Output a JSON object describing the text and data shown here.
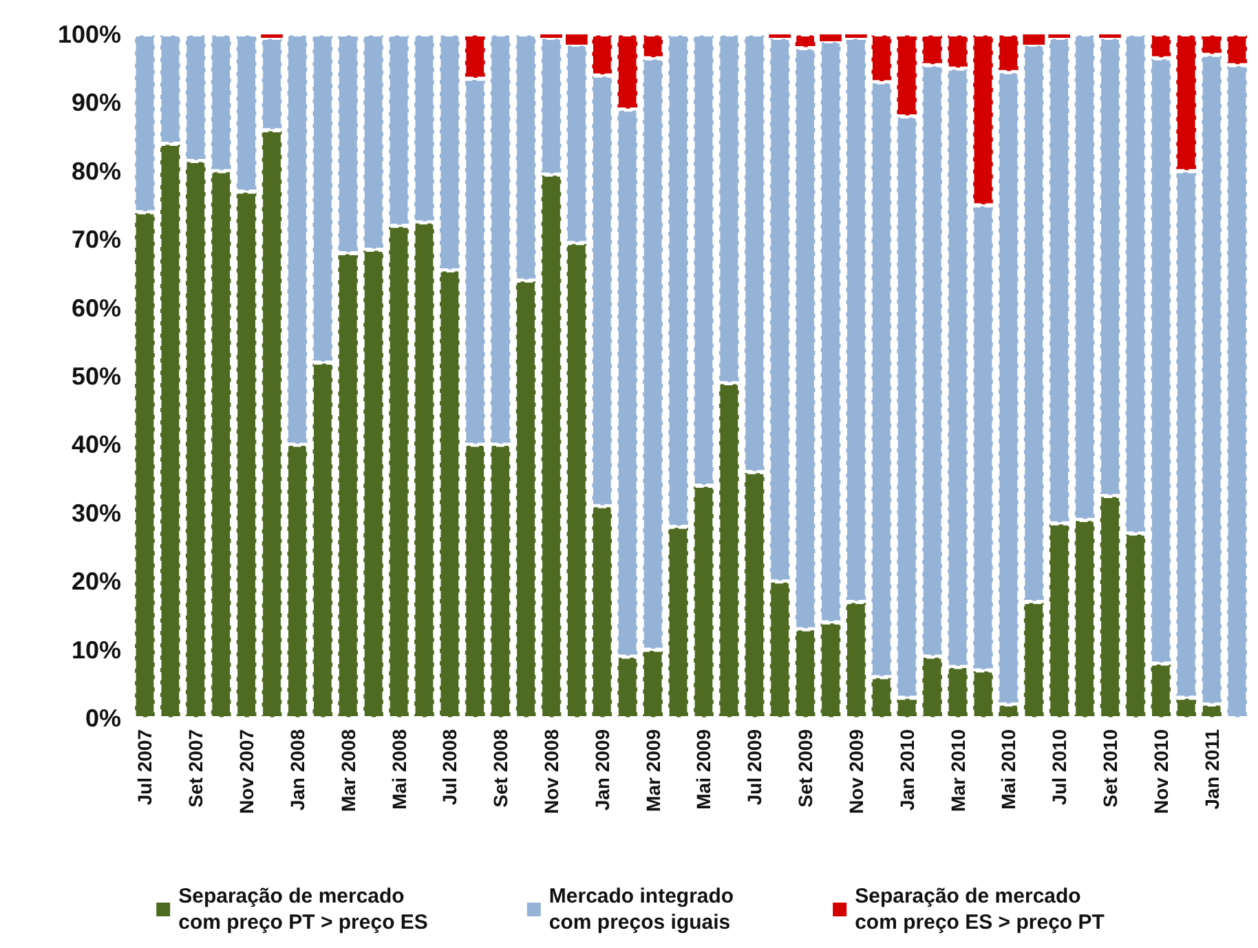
{
  "chart_data": {
    "type": "bar",
    "stacked": true,
    "categories": [
      "Jul 2007",
      null,
      "Set 2007",
      null,
      "Nov 2007",
      null,
      "Jan 2008",
      null,
      "Mar 2008",
      null,
      "Mai 2008",
      null,
      "Jul 2008",
      null,
      "Set 2008",
      null,
      "Nov 2008",
      null,
      "Jan 2009",
      null,
      "Mar 2009",
      null,
      "Mai 2009",
      null,
      "Jul 2009",
      null,
      "Set 2009",
      null,
      "Nov 2009",
      null,
      "Jan 2010",
      null,
      "Mar 2010",
      null,
      "Mai 2010",
      null,
      "Jul 2010",
      null,
      "Set 2010",
      null,
      "Nov 2010",
      null,
      "Jan 2011",
      null
    ],
    "series": [
      {
        "name": "Separação de mercado\ncom preço PT > preço ES",
        "color": "#4f6b22",
        "values": [
          74,
          84,
          81.5,
          80,
          77,
          86,
          40,
          52,
          68,
          68.5,
          72,
          72.5,
          65.5,
          40,
          40,
          64,
          79.5,
          69.5,
          31,
          9,
          10,
          28,
          34,
          49,
          36,
          20,
          13,
          14,
          17,
          6,
          3,
          9,
          7.5,
          7,
          2,
          17,
          28.5,
          29,
          32.5,
          27,
          8,
          3,
          2,
          0
        ]
      },
      {
        "name": "Mercado integrado\ncom preços iguais",
        "color": "#95b3d7",
        "values": [
          26,
          16,
          18.5,
          20,
          23,
          13.5,
          60,
          48,
          32,
          31.5,
          28,
          27.5,
          34.5,
          53.5,
          60,
          36,
          20,
          29,
          63,
          80,
          86.5,
          72,
          66,
          51,
          64,
          79.5,
          85,
          85,
          82.5,
          87,
          85,
          86.5,
          87.5,
          68,
          92.5,
          81.5,
          71,
          71,
          67,
          73,
          88.5,
          77,
          95,
          95.5
        ]
      },
      {
        "name": "Separação de mercado\ncom preço ES > preço PT",
        "color": "#d40000",
        "values": [
          0,
          0,
          0,
          0,
          0,
          0.5,
          0,
          0,
          0,
          0,
          0,
          0,
          0,
          6.5,
          0,
          0,
          0.5,
          1.5,
          6,
          11,
          3.5,
          0,
          0,
          0,
          0,
          0.5,
          2,
          1,
          0.5,
          7,
          12,
          4.5,
          5,
          25,
          5.5,
          1.5,
          0.5,
          0,
          0.5,
          0,
          3.5,
          20,
          3,
          4.5
        ]
      }
    ],
    "ylim": [
      0,
      100
    ],
    "yticks": [
      {
        "value": 0,
        "label": "0%"
      },
      {
        "value": 10,
        "label": "10%"
      },
      {
        "value": 20,
        "label": "20%"
      },
      {
        "value": 30,
        "label": "30%"
      },
      {
        "value": 40,
        "label": "40%"
      },
      {
        "value": 50,
        "label": "50%"
      },
      {
        "value": 60,
        "label": "60%"
      },
      {
        "value": 70,
        "label": "70%"
      },
      {
        "value": 80,
        "label": "80%"
      },
      {
        "value": 90,
        "label": "90%"
      },
      {
        "value": 100,
        "label": "100%"
      }
    ],
    "grid": false,
    "legend": "bottom"
  }
}
